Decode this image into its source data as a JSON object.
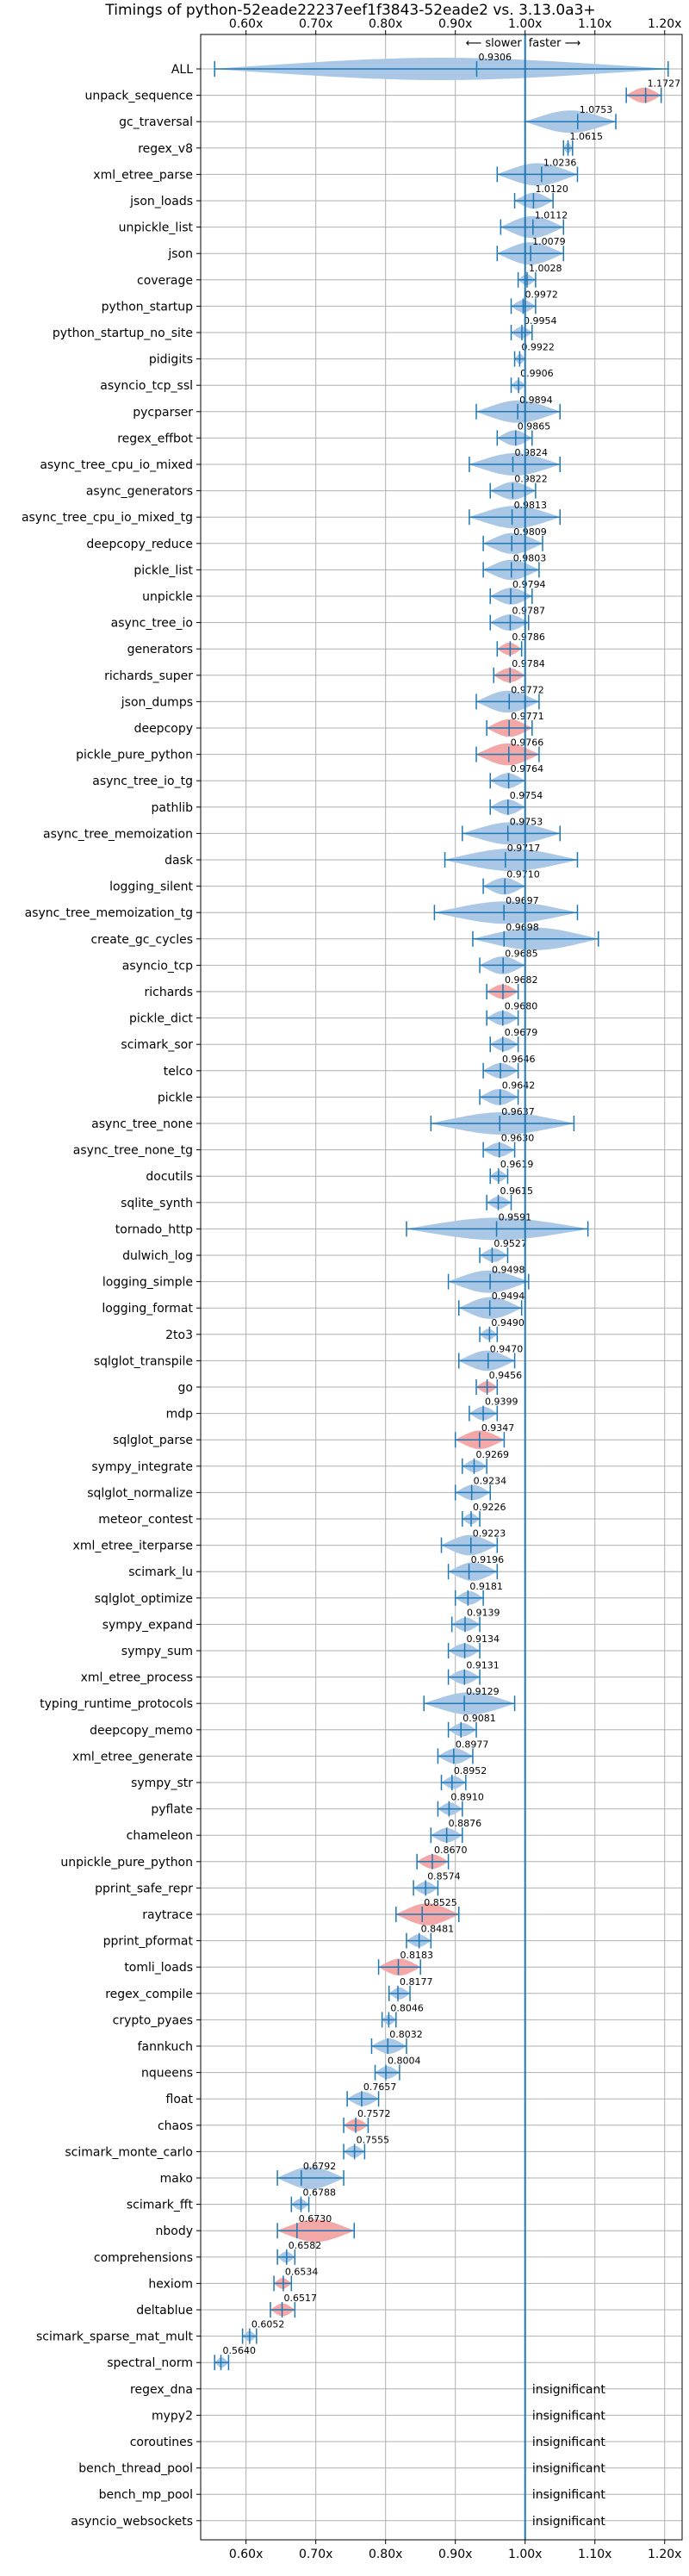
{
  "chart_data": {
    "type": "violin",
    "title": "Timings of python-52eade22237eef1f3843-52eade2 vs. 3.13.0a3+",
    "direction_labels": {
      "slower": "⟵ slower",
      "faster": "faster ⟶"
    },
    "xlim": [
      0.535,
      1.225
    ],
    "xticks": [
      0.6,
      0.7,
      0.8,
      0.9,
      1.0,
      1.1,
      1.2
    ],
    "xtick_labels": [
      "0.60x",
      "0.70x",
      "0.80x",
      "0.90x",
      "1.00x",
      "1.10x",
      "1.20x"
    ],
    "grid": true,
    "colors": {
      "normal": "#1f77b4",
      "fill_normal": "#aac8e6",
      "fill_highlight": "#f4a7a7"
    },
    "insignificant_label": "insignificant",
    "rows": [
      {
        "name": "ALL",
        "value": 0.9306,
        "lo": 0.555,
        "hi": 1.205
      },
      {
        "name": "unpack_sequence",
        "value": 1.1727,
        "lo": 1.145,
        "hi": 1.195,
        "highlight": true
      },
      {
        "name": "gc_traversal",
        "value": 1.0753,
        "lo": 1.0,
        "hi": 1.13
      },
      {
        "name": "regex_v8",
        "value": 1.0615,
        "lo": 1.055,
        "hi": 1.068
      },
      {
        "name": "xml_etree_parse",
        "value": 1.0236,
        "lo": 0.96,
        "hi": 1.075
      },
      {
        "name": "json_loads",
        "value": 1.012,
        "lo": 0.985,
        "hi": 1.04
      },
      {
        "name": "unpickle_list",
        "value": 1.0112,
        "lo": 0.965,
        "hi": 1.055
      },
      {
        "name": "json",
        "value": 1.0079,
        "lo": 0.96,
        "hi": 1.055
      },
      {
        "name": "coverage",
        "value": 1.0028,
        "lo": 0.99,
        "hi": 1.015
      },
      {
        "name": "python_startup",
        "value": 0.9972,
        "lo": 0.98,
        "hi": 1.015
      },
      {
        "name": "python_startup_no_site",
        "value": 0.9954,
        "lo": 0.98,
        "hi": 1.01
      },
      {
        "name": "pidigits",
        "value": 0.9922,
        "lo": 0.985,
        "hi": 1.0
      },
      {
        "name": "asyncio_tcp_ssl",
        "value": 0.9906,
        "lo": 0.98,
        "hi": 1.0
      },
      {
        "name": "pycparser",
        "value": 0.9894,
        "lo": 0.93,
        "hi": 1.05
      },
      {
        "name": "regex_effbot",
        "value": 0.9865,
        "lo": 0.96,
        "hi": 1.01
      },
      {
        "name": "async_tree_cpu_io_mixed",
        "value": 0.9824,
        "lo": 0.92,
        "hi": 1.05
      },
      {
        "name": "async_generators",
        "value": 0.9822,
        "lo": 0.95,
        "hi": 1.015
      },
      {
        "name": "async_tree_cpu_io_mixed_tg",
        "value": 0.9813,
        "lo": 0.92,
        "hi": 1.05
      },
      {
        "name": "deepcopy_reduce",
        "value": 0.9809,
        "lo": 0.94,
        "hi": 1.025
      },
      {
        "name": "pickle_list",
        "value": 0.9803,
        "lo": 0.94,
        "hi": 1.02
      },
      {
        "name": "unpickle",
        "value": 0.9794,
        "lo": 0.95,
        "hi": 1.01
      },
      {
        "name": "async_tree_io",
        "value": 0.9787,
        "lo": 0.95,
        "hi": 1.005
      },
      {
        "name": "generators",
        "value": 0.9786,
        "lo": 0.96,
        "hi": 0.995,
        "highlight": true
      },
      {
        "name": "richards_super",
        "value": 0.9784,
        "lo": 0.955,
        "hi": 1.0,
        "highlight": true
      },
      {
        "name": "json_dumps",
        "value": 0.9772,
        "lo": 0.93,
        "hi": 1.02
      },
      {
        "name": "deepcopy",
        "value": 0.9771,
        "lo": 0.945,
        "hi": 1.01,
        "highlight": true
      },
      {
        "name": "pickle_pure_python",
        "value": 0.9766,
        "lo": 0.93,
        "hi": 1.02,
        "highlight": true
      },
      {
        "name": "async_tree_io_tg",
        "value": 0.9764,
        "lo": 0.95,
        "hi": 1.0
      },
      {
        "name": "pathlib",
        "value": 0.9754,
        "lo": 0.95,
        "hi": 1.0
      },
      {
        "name": "async_tree_memoization",
        "value": 0.9753,
        "lo": 0.91,
        "hi": 1.05
      },
      {
        "name": "dask",
        "value": 0.9717,
        "lo": 0.885,
        "hi": 1.075
      },
      {
        "name": "logging_silent",
        "value": 0.971,
        "lo": 0.94,
        "hi": 1.0
      },
      {
        "name": "async_tree_memoization_tg",
        "value": 0.9697,
        "lo": 0.87,
        "hi": 1.075
      },
      {
        "name": "create_gc_cycles",
        "value": 0.9698,
        "lo": 0.925,
        "hi": 1.105
      },
      {
        "name": "asyncio_tcp",
        "value": 0.9685,
        "lo": 0.935,
        "hi": 1.0
      },
      {
        "name": "richards",
        "value": 0.9682,
        "lo": 0.945,
        "hi": 0.99,
        "highlight": true
      },
      {
        "name": "pickle_dict",
        "value": 0.968,
        "lo": 0.945,
        "hi": 0.99
      },
      {
        "name": "scimark_sor",
        "value": 0.9679,
        "lo": 0.95,
        "hi": 0.99
      },
      {
        "name": "telco",
        "value": 0.9646,
        "lo": 0.94,
        "hi": 0.99
      },
      {
        "name": "pickle",
        "value": 0.9642,
        "lo": 0.935,
        "hi": 0.99
      },
      {
        "name": "async_tree_none",
        "value": 0.9637,
        "lo": 0.865,
        "hi": 1.07
      },
      {
        "name": "async_tree_none_tg",
        "value": 0.963,
        "lo": 0.94,
        "hi": 0.985
      },
      {
        "name": "docutils",
        "value": 0.9619,
        "lo": 0.95,
        "hi": 0.975
      },
      {
        "name": "sqlite_synth",
        "value": 0.9615,
        "lo": 0.945,
        "hi": 0.98
      },
      {
        "name": "tornado_http",
        "value": 0.9591,
        "lo": 0.83,
        "hi": 1.09
      },
      {
        "name": "dulwich_log",
        "value": 0.9527,
        "lo": 0.935,
        "hi": 0.975
      },
      {
        "name": "logging_simple",
        "value": 0.9498,
        "lo": 0.89,
        "hi": 1.005
      },
      {
        "name": "logging_format",
        "value": 0.9494,
        "lo": 0.905,
        "hi": 0.995
      },
      {
        "name": "2to3",
        "value": 0.949,
        "lo": 0.935,
        "hi": 0.96
      },
      {
        "name": "sqlglot_transpile",
        "value": 0.947,
        "lo": 0.905,
        "hi": 0.985
      },
      {
        "name": "go",
        "value": 0.9456,
        "lo": 0.93,
        "hi": 0.96,
        "highlight": true
      },
      {
        "name": "mdp",
        "value": 0.9399,
        "lo": 0.92,
        "hi": 0.96
      },
      {
        "name": "sqlglot_parse",
        "value": 0.9347,
        "lo": 0.9,
        "hi": 0.97,
        "highlight": true
      },
      {
        "name": "sympy_integrate",
        "value": 0.9269,
        "lo": 0.91,
        "hi": 0.945
      },
      {
        "name": "sqlglot_normalize",
        "value": 0.9234,
        "lo": 0.9,
        "hi": 0.95
      },
      {
        "name": "meteor_contest",
        "value": 0.9226,
        "lo": 0.91,
        "hi": 0.935
      },
      {
        "name": "xml_etree_iterparse",
        "value": 0.9223,
        "lo": 0.88,
        "hi": 0.96
      },
      {
        "name": "scimark_lu",
        "value": 0.9196,
        "lo": 0.89,
        "hi": 0.96
      },
      {
        "name": "sqlglot_optimize",
        "value": 0.9181,
        "lo": 0.9,
        "hi": 0.94
      },
      {
        "name": "sympy_expand",
        "value": 0.9139,
        "lo": 0.895,
        "hi": 0.935
      },
      {
        "name": "sympy_sum",
        "value": 0.9134,
        "lo": 0.89,
        "hi": 0.935
      },
      {
        "name": "xml_etree_process",
        "value": 0.9131,
        "lo": 0.89,
        "hi": 0.935
      },
      {
        "name": "typing_runtime_protocols",
        "value": 0.9129,
        "lo": 0.855,
        "hi": 0.985
      },
      {
        "name": "deepcopy_memo",
        "value": 0.9081,
        "lo": 0.89,
        "hi": 0.93
      },
      {
        "name": "xml_etree_generate",
        "value": 0.8977,
        "lo": 0.875,
        "hi": 0.925
      },
      {
        "name": "sympy_str",
        "value": 0.8952,
        "lo": 0.88,
        "hi": 0.915
      },
      {
        "name": "pyflate",
        "value": 0.891,
        "lo": 0.875,
        "hi": 0.91
      },
      {
        "name": "chameleon",
        "value": 0.8876,
        "lo": 0.865,
        "hi": 0.91
      },
      {
        "name": "unpickle_pure_python",
        "value": 0.867,
        "lo": 0.845,
        "hi": 0.89,
        "highlight": true
      },
      {
        "name": "pprint_safe_repr",
        "value": 0.8574,
        "lo": 0.84,
        "hi": 0.875
      },
      {
        "name": "raytrace",
        "value": 0.8525,
        "lo": 0.815,
        "hi": 0.905,
        "highlight": true
      },
      {
        "name": "pprint_pformat",
        "value": 0.8481,
        "lo": 0.83,
        "hi": 0.865
      },
      {
        "name": "tomli_loads",
        "value": 0.8183,
        "lo": 0.79,
        "hi": 0.85,
        "highlight": true
      },
      {
        "name": "regex_compile",
        "value": 0.8177,
        "lo": 0.805,
        "hi": 0.835
      },
      {
        "name": "crypto_pyaes",
        "value": 0.8046,
        "lo": 0.795,
        "hi": 0.815
      },
      {
        "name": "fannkuch",
        "value": 0.8032,
        "lo": 0.78,
        "hi": 0.83
      },
      {
        "name": "nqueens",
        "value": 0.8004,
        "lo": 0.785,
        "hi": 0.82
      },
      {
        "name": "float",
        "value": 0.7657,
        "lo": 0.745,
        "hi": 0.79
      },
      {
        "name": "chaos",
        "value": 0.7572,
        "lo": 0.74,
        "hi": 0.775,
        "highlight": true
      },
      {
        "name": "scimark_monte_carlo",
        "value": 0.7555,
        "lo": 0.74,
        "hi": 0.77
      },
      {
        "name": "mako",
        "value": 0.6792,
        "lo": 0.645,
        "hi": 0.74
      },
      {
        "name": "scimark_fft",
        "value": 0.6788,
        "lo": 0.665,
        "hi": 0.69
      },
      {
        "name": "nbody",
        "value": 0.673,
        "lo": 0.645,
        "hi": 0.755,
        "highlight": true
      },
      {
        "name": "comprehensions",
        "value": 0.6582,
        "lo": 0.645,
        "hi": 0.67
      },
      {
        "name": "hexiom",
        "value": 0.6534,
        "lo": 0.64,
        "hi": 0.665,
        "highlight": true
      },
      {
        "name": "deltablue",
        "value": 0.6517,
        "lo": 0.635,
        "hi": 0.67,
        "highlight": true
      },
      {
        "name": "scimark_sparse_mat_mult",
        "value": 0.6052,
        "lo": 0.595,
        "hi": 0.615
      },
      {
        "name": "spectral_norm",
        "value": 0.564,
        "lo": 0.555,
        "hi": 0.575
      },
      {
        "name": "regex_dna",
        "insignificant": true
      },
      {
        "name": "mypy2",
        "insignificant": true
      },
      {
        "name": "coroutines",
        "insignificant": true
      },
      {
        "name": "bench_thread_pool",
        "insignificant": true
      },
      {
        "name": "bench_mp_pool",
        "insignificant": true
      },
      {
        "name": "asyncio_websockets",
        "insignificant": true
      }
    ]
  }
}
